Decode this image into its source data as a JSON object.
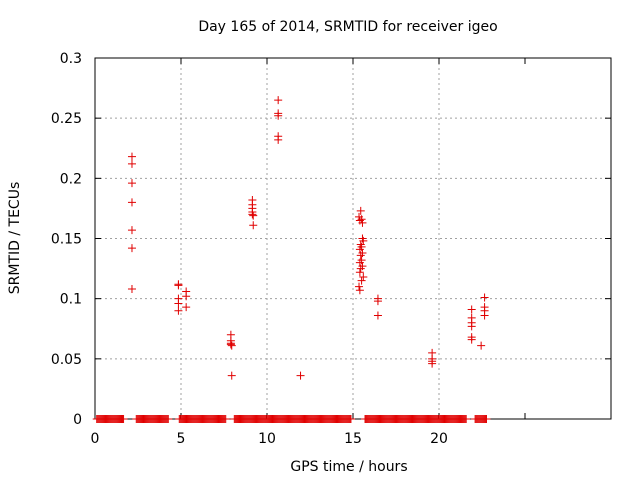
{
  "chart_data": {
    "type": "scatter",
    "title": "Day 165 of 2014, SRMTID for receiver igeo",
    "xlabel": "GPS time / hours",
    "ylabel": "SRMTID / TECUs",
    "xlim": [
      0,
      30
    ],
    "ylim": [
      0,
      0.3
    ],
    "xticks": [
      0,
      5,
      10,
      15,
      20,
      25
    ],
    "xtick_labels": [
      "0",
      "5",
      "10",
      "15",
      "20",
      ""
    ],
    "yticks": [
      0,
      0.05,
      0.1,
      0.15,
      0.2,
      0.25,
      0.3
    ],
    "ytick_labels": [
      "0",
      "0.05",
      "0.1",
      "0.15",
      "0.2",
      "0.25",
      "0.3"
    ],
    "grid": true,
    "legend": "none",
    "marker": "+",
    "color": "#e00000",
    "series": [
      {
        "name": "SRMTID",
        "points": [
          [
            2.15,
            0.218
          ],
          [
            2.15,
            0.212
          ],
          [
            2.15,
            0.196
          ],
          [
            2.15,
            0.18
          ],
          [
            2.15,
            0.157
          ],
          [
            2.15,
            0.142
          ],
          [
            2.15,
            0.108
          ],
          [
            4.85,
            0.112
          ],
          [
            4.85,
            0.111
          ],
          [
            4.85,
            0.1
          ],
          [
            4.85,
            0.096
          ],
          [
            4.85,
            0.09
          ],
          [
            5.3,
            0.106
          ],
          [
            5.3,
            0.102
          ],
          [
            5.3,
            0.093
          ],
          [
            7.9,
            0.07
          ],
          [
            7.9,
            0.065
          ],
          [
            7.9,
            0.063
          ],
          [
            7.9,
            0.062
          ],
          [
            7.95,
            0.061
          ],
          [
            7.95,
            0.036
          ],
          [
            9.15,
            0.182
          ],
          [
            9.15,
            0.178
          ],
          [
            9.15,
            0.175
          ],
          [
            9.15,
            0.172
          ],
          [
            9.15,
            0.17
          ],
          [
            9.2,
            0.169
          ],
          [
            9.2,
            0.161
          ],
          [
            10.65,
            0.265
          ],
          [
            10.65,
            0.254
          ],
          [
            10.65,
            0.252
          ],
          [
            10.65,
            0.235
          ],
          [
            10.65,
            0.232
          ],
          [
            11.95,
            0.036
          ],
          [
            15.35,
            0.168
          ],
          [
            15.45,
            0.173
          ],
          [
            15.5,
            0.166
          ],
          [
            15.55,
            0.163
          ],
          [
            15.4,
            0.165
          ],
          [
            15.55,
            0.15
          ],
          [
            15.6,
            0.148
          ],
          [
            15.45,
            0.145
          ],
          [
            15.5,
            0.143
          ],
          [
            15.4,
            0.141
          ],
          [
            15.55,
            0.138
          ],
          [
            15.45,
            0.136
          ],
          [
            15.5,
            0.132
          ],
          [
            15.4,
            0.13
          ],
          [
            15.55,
            0.127
          ],
          [
            15.45,
            0.125
          ],
          [
            15.4,
            0.122
          ],
          [
            15.6,
            0.118
          ],
          [
            15.5,
            0.115
          ],
          [
            15.35,
            0.11
          ],
          [
            15.4,
            0.107
          ],
          [
            16.45,
            0.1
          ],
          [
            16.45,
            0.098
          ],
          [
            16.45,
            0.086
          ],
          [
            19.6,
            0.055
          ],
          [
            19.6,
            0.05
          ],
          [
            19.6,
            0.048
          ],
          [
            19.6,
            0.046
          ],
          [
            21.9,
            0.091
          ],
          [
            21.9,
            0.084
          ],
          [
            21.9,
            0.08
          ],
          [
            21.9,
            0.077
          ],
          [
            21.9,
            0.068
          ],
          [
            21.9,
            0.066
          ],
          [
            22.45,
            0.061
          ],
          [
            22.65,
            0.101
          ],
          [
            22.65,
            0.093
          ],
          [
            22.65,
            0.09
          ],
          [
            22.65,
            0.086
          ]
        ]
      }
    ],
    "zero_band": [
      [
        0.1,
        1.7
      ],
      [
        2.4,
        4.3
      ],
      [
        4.9,
        7.6
      ],
      [
        8.1,
        14.9
      ],
      [
        15.7,
        21.6
      ],
      [
        22.1,
        22.8
      ]
    ]
  }
}
